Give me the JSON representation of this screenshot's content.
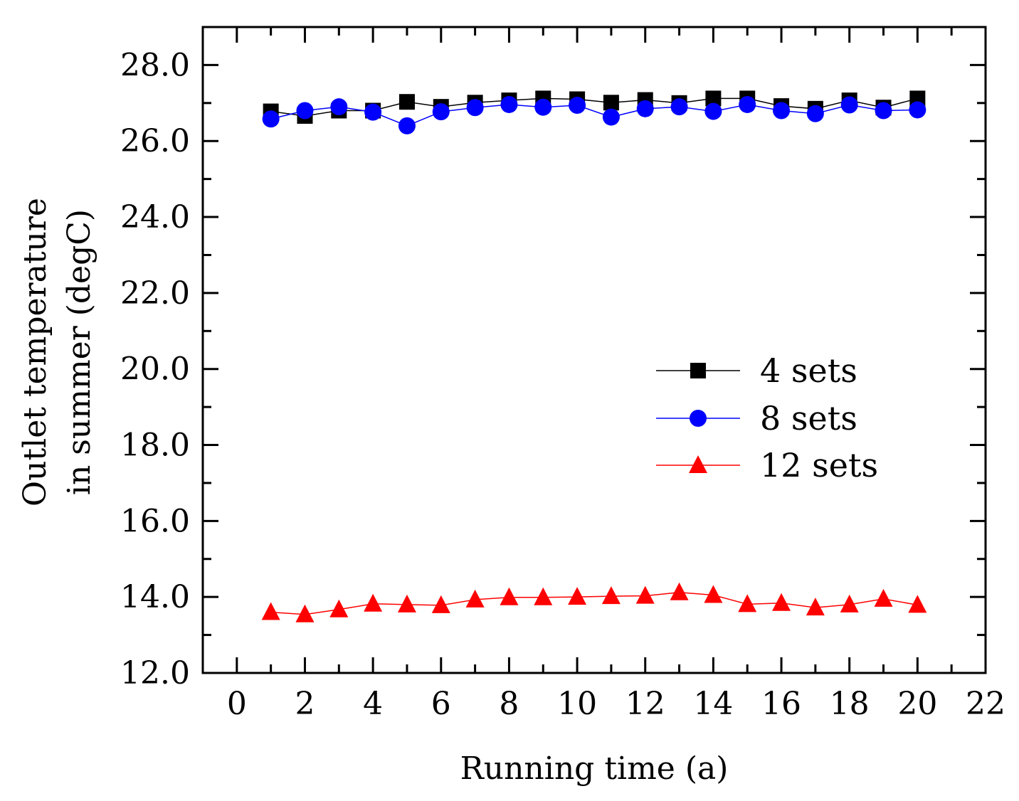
{
  "chart_data": {
    "type": "line",
    "title": "",
    "xlabel": "Running time (a)",
    "ylabel_lines": [
      "Outlet temperature",
      "in summer (degC)"
    ],
    "xlim": [
      -1,
      22
    ],
    "ylim": [
      12.0,
      29.0
    ],
    "x_ticks": [
      0,
      2,
      4,
      6,
      8,
      10,
      12,
      14,
      16,
      18,
      20,
      22
    ],
    "x_tick_labels": [
      "0",
      "2",
      "4",
      "6",
      "8",
      "10",
      "12",
      "14",
      "16",
      "18",
      "20",
      "22"
    ],
    "y_ticks": [
      12,
      14,
      16,
      18,
      20,
      22,
      24,
      26,
      28
    ],
    "y_tick_labels": [
      "12.0",
      "14.0",
      "16.0",
      "18.0",
      "20.0",
      "22.0",
      "24.0",
      "26.0",
      "28.0"
    ],
    "grid": false,
    "legend_position": "right-center",
    "x": [
      1,
      2,
      3,
      4,
      5,
      6,
      7,
      8,
      9,
      10,
      11,
      12,
      13,
      14,
      15,
      16,
      17,
      18,
      19,
      20
    ],
    "series": [
      {
        "name": "4 sets",
        "color": "#000000",
        "marker": "square",
        "values": [
          26.78,
          26.66,
          26.8,
          26.8,
          27.03,
          26.9,
          27.01,
          27.07,
          27.12,
          27.1,
          27.01,
          27.08,
          27.0,
          27.12,
          27.12,
          26.92,
          26.85,
          27.07,
          26.88,
          27.12
        ]
      },
      {
        "name": "8 sets",
        "color": "#0000ff",
        "marker": "circle",
        "values": [
          26.58,
          26.8,
          26.9,
          26.76,
          26.4,
          26.77,
          26.88,
          26.96,
          26.89,
          26.94,
          26.63,
          26.85,
          26.9,
          26.78,
          26.96,
          26.8,
          26.72,
          26.95,
          26.8,
          26.82
        ]
      },
      {
        "name": "12 sets",
        "color": "#ff0000",
        "marker": "triangle",
        "values": [
          13.6,
          13.54,
          13.67,
          13.82,
          13.8,
          13.78,
          13.93,
          13.99,
          13.99,
          14.0,
          14.02,
          14.03,
          14.12,
          14.05,
          13.81,
          13.84,
          13.72,
          13.8,
          13.95,
          13.79
        ]
      }
    ]
  }
}
